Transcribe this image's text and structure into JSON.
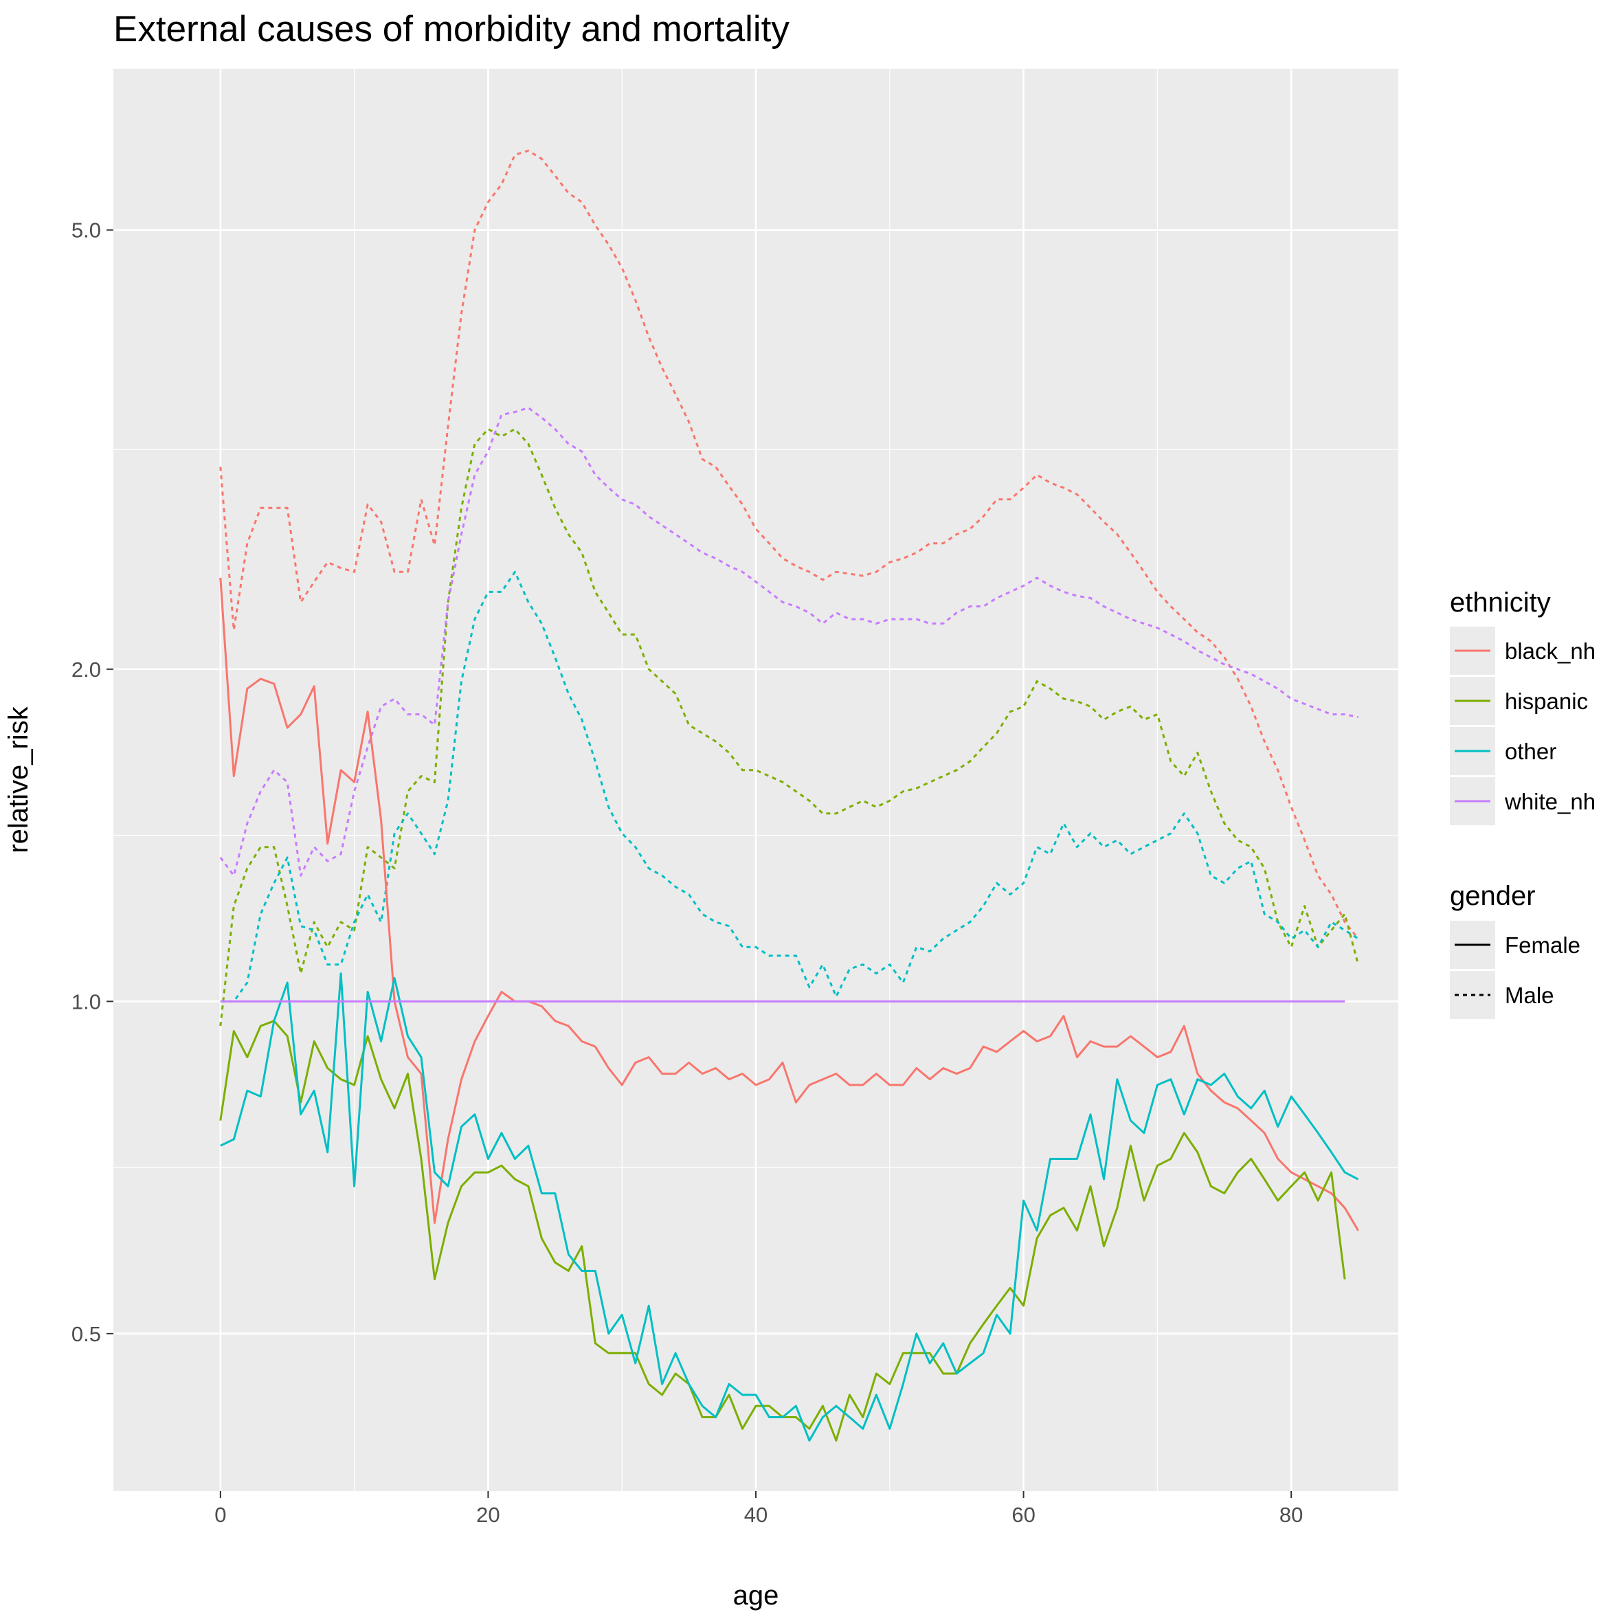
{
  "chart_data": {
    "type": "line",
    "title": "External causes of morbidity and mortality",
    "xlabel": "age",
    "ylabel": "relative_risk",
    "xlim": [
      -8,
      88
    ],
    "ylim": [
      0.36,
      7.0
    ],
    "y_scale": "log",
    "x_ticks": [
      0,
      20,
      40,
      60,
      80
    ],
    "x_tick_labels": [
      "0",
      "20",
      "40",
      "60",
      "80"
    ],
    "y_ticks": [
      0.5,
      1.0,
      2.0,
      5.0
    ],
    "y_tick_labels": [
      "0.5",
      "1.0",
      "2.0",
      "5.0"
    ],
    "grid": true,
    "legend_position": "right",
    "legends": [
      {
        "title": "ethnicity",
        "entries": [
          {
            "label": "black_nh",
            "color": "#F8766D"
          },
          {
            "label": "hispanic",
            "color": "#7CAE00"
          },
          {
            "label": "other",
            "color": "#00BFC4"
          },
          {
            "label": "white_nh",
            "color": "#C77CFF"
          }
        ]
      },
      {
        "title": "gender",
        "entries": [
          {
            "label": "Female",
            "linetype": "solid"
          },
          {
            "label": "Male",
            "linetype": "dashed"
          }
        ]
      }
    ],
    "series": [
      {
        "ethnicity": "black_nh",
        "gender": "Female",
        "color": "#F8766D",
        "x_start": 0,
        "values": [
          2.42,
          1.6,
          1.92,
          1.96,
          1.94,
          1.77,
          1.82,
          1.93,
          1.39,
          1.62,
          1.58,
          1.83,
          1.46,
          1.0,
          0.89,
          0.86,
          0.63,
          0.75,
          0.85,
          0.92,
          0.97,
          1.02,
          1.0,
          1.0,
          0.99,
          0.96,
          0.95,
          0.92,
          0.91,
          0.87,
          0.84,
          0.88,
          0.89,
          0.86,
          0.86,
          0.88,
          0.86,
          0.87,
          0.85,
          0.86,
          0.84,
          0.85,
          0.88,
          0.81,
          0.84,
          0.85,
          0.86,
          0.84,
          0.84,
          0.86,
          0.84,
          0.84,
          0.87,
          0.85,
          0.87,
          0.86,
          0.87,
          0.91,
          0.9,
          0.92,
          0.94,
          0.92,
          0.93,
          0.97,
          0.89,
          0.92,
          0.91,
          0.91,
          0.93,
          0.91,
          0.89,
          0.9,
          0.95,
          0.86,
          0.83,
          0.81,
          0.8,
          0.78,
          0.76,
          0.72,
          0.7,
          0.69,
          0.68,
          0.67,
          0.65,
          0.62
        ]
      },
      {
        "ethnicity": "hispanic",
        "gender": "Female",
        "color": "#7CAE00",
        "x_start": 0,
        "values": [
          0.78,
          0.94,
          0.89,
          0.95,
          0.96,
          0.93,
          0.81,
          0.92,
          0.87,
          0.85,
          0.84,
          0.93,
          0.85,
          0.8,
          0.86,
          0.72,
          0.56,
          0.63,
          0.68,
          0.7,
          0.7,
          0.71,
          0.69,
          0.68,
          0.61,
          0.58,
          0.57,
          0.6,
          0.49,
          0.48,
          0.48,
          0.48,
          0.45,
          0.44,
          0.46,
          0.45,
          0.42,
          0.42,
          0.44,
          0.41,
          0.43,
          0.43,
          0.42,
          0.42,
          0.41,
          0.43,
          0.4,
          0.44,
          0.42,
          0.46,
          0.45,
          0.48,
          0.48,
          0.48,
          0.46,
          0.46,
          0.49,
          0.51,
          0.53,
          0.55,
          0.53,
          0.61,
          0.64,
          0.65,
          0.62,
          0.68,
          0.6,
          0.65,
          0.74,
          0.66,
          0.71,
          0.72,
          0.76,
          0.73,
          0.68,
          0.67,
          0.7,
          0.72,
          0.69,
          0.66,
          0.68,
          0.7,
          0.66,
          0.7,
          0.56
        ]
      },
      {
        "ethnicity": "other",
        "gender": "Female",
        "color": "#00BFC4",
        "x_start": 0,
        "values": [
          0.74,
          0.75,
          0.83,
          0.82,
          0.96,
          1.04,
          0.79,
          0.83,
          0.73,
          1.06,
          0.68,
          1.02,
          0.92,
          1.05,
          0.93,
          0.89,
          0.7,
          0.68,
          0.77,
          0.79,
          0.72,
          0.76,
          0.72,
          0.74,
          0.67,
          0.67,
          0.59,
          0.57,
          0.57,
          0.5,
          0.52,
          0.47,
          0.53,
          0.45,
          0.48,
          0.45,
          0.43,
          0.42,
          0.45,
          0.44,
          0.44,
          0.42,
          0.42,
          0.43,
          0.4,
          0.42,
          0.43,
          0.42,
          0.41,
          0.44,
          0.41,
          0.45,
          0.5,
          0.47,
          0.49,
          0.46,
          0.47,
          0.48,
          0.52,
          0.5,
          0.66,
          0.62,
          0.72,
          0.72,
          0.72,
          0.79,
          0.69,
          0.85,
          0.78,
          0.76,
          0.84,
          0.85,
          0.79,
          0.85,
          0.84,
          0.86,
          0.82,
          0.8,
          0.83,
          0.77,
          0.82,
          0.79,
          0.76,
          0.73,
          0.7,
          0.69
        ]
      },
      {
        "ethnicity": "white_nh",
        "gender": "Female",
        "color": "#C77CFF",
        "x_start": 0,
        "values": [
          1,
          1,
          1,
          1,
          1,
          1,
          1,
          1,
          1,
          1,
          1,
          1,
          1,
          1,
          1,
          1,
          1,
          1,
          1,
          1,
          1,
          1,
          1,
          1,
          1,
          1,
          1,
          1,
          1,
          1,
          1,
          1,
          1,
          1,
          1,
          1,
          1,
          1,
          1,
          1,
          1,
          1,
          1,
          1,
          1,
          1,
          1,
          1,
          1,
          1,
          1,
          1,
          1,
          1,
          1,
          1,
          1,
          1,
          1,
          1,
          1,
          1,
          1,
          1,
          1,
          1,
          1,
          1,
          1,
          1,
          1,
          1,
          1,
          1,
          1,
          1,
          1,
          1,
          1,
          1,
          1,
          1,
          1,
          1,
          1
        ]
      },
      {
        "ethnicity": "black_nh",
        "gender": "Male",
        "color": "#F8766D",
        "x_start": 0,
        "values": [
          3.05,
          2.17,
          2.6,
          2.8,
          2.8,
          2.8,
          2.3,
          2.4,
          2.5,
          2.47,
          2.45,
          2.82,
          2.72,
          2.45,
          2.45,
          2.85,
          2.59,
          3.32,
          4.2,
          5.0,
          5.3,
          5.5,
          5.85,
          5.9,
          5.8,
          5.6,
          5.4,
          5.3,
          5.05,
          4.85,
          4.62,
          4.32,
          4.0,
          3.75,
          3.55,
          3.35,
          3.1,
          3.05,
          2.93,
          2.82,
          2.68,
          2.6,
          2.52,
          2.48,
          2.45,
          2.41,
          2.45,
          2.44,
          2.43,
          2.45,
          2.5,
          2.52,
          2.55,
          2.6,
          2.6,
          2.65,
          2.68,
          2.75,
          2.85,
          2.85,
          2.92,
          3.0,
          2.95,
          2.92,
          2.88,
          2.8,
          2.72,
          2.65,
          2.55,
          2.45,
          2.35,
          2.28,
          2.22,
          2.16,
          2.12,
          2.05,
          1.96,
          1.85,
          1.72,
          1.62,
          1.5,
          1.4,
          1.3,
          1.25,
          1.18,
          1.14
        ]
      },
      {
        "ethnicity": "hispanic",
        "gender": "Male",
        "color": "#7CAE00",
        "x_start": 0,
        "values": [
          0.95,
          1.22,
          1.32,
          1.38,
          1.38,
          1.22,
          1.06,
          1.18,
          1.12,
          1.18,
          1.16,
          1.38,
          1.35,
          1.32,
          1.55,
          1.6,
          1.58,
          2.3,
          2.8,
          3.2,
          3.3,
          3.25,
          3.3,
          3.2,
          3.0,
          2.8,
          2.65,
          2.55,
          2.35,
          2.25,
          2.15,
          2.15,
          2.0,
          1.95,
          1.9,
          1.78,
          1.75,
          1.72,
          1.68,
          1.62,
          1.62,
          1.6,
          1.58,
          1.55,
          1.52,
          1.48,
          1.48,
          1.5,
          1.52,
          1.5,
          1.52,
          1.55,
          1.56,
          1.58,
          1.6,
          1.62,
          1.65,
          1.7,
          1.75,
          1.83,
          1.85,
          1.95,
          1.92,
          1.88,
          1.87,
          1.85,
          1.8,
          1.83,
          1.85,
          1.8,
          1.82,
          1.65,
          1.6,
          1.68,
          1.55,
          1.45,
          1.4,
          1.38,
          1.32,
          1.18,
          1.12,
          1.22,
          1.12,
          1.16,
          1.2,
          1.08
        ]
      },
      {
        "ethnicity": "other",
        "gender": "Male",
        "color": "#00BFC4",
        "x_start": 0,
        "values": [
          1.0,
          1.0,
          1.04,
          1.2,
          1.28,
          1.35,
          1.17,
          1.16,
          1.08,
          1.08,
          1.18,
          1.25,
          1.18,
          1.42,
          1.48,
          1.42,
          1.36,
          1.52,
          1.95,
          2.22,
          2.35,
          2.35,
          2.45,
          2.3,
          2.2,
          2.05,
          1.9,
          1.8,
          1.65,
          1.5,
          1.42,
          1.38,
          1.32,
          1.3,
          1.27,
          1.25,
          1.2,
          1.18,
          1.17,
          1.12,
          1.12,
          1.1,
          1.1,
          1.1,
          1.03,
          1.08,
          1.01,
          1.07,
          1.08,
          1.06,
          1.08,
          1.04,
          1.12,
          1.11,
          1.14,
          1.16,
          1.18,
          1.22,
          1.28,
          1.25,
          1.28,
          1.38,
          1.36,
          1.45,
          1.38,
          1.42,
          1.38,
          1.4,
          1.36,
          1.38,
          1.4,
          1.42,
          1.48,
          1.42,
          1.3,
          1.28,
          1.32,
          1.34,
          1.2,
          1.18,
          1.14,
          1.16,
          1.12,
          1.18,
          1.16,
          1.14
        ]
      },
      {
        "ethnicity": "white_nh",
        "gender": "Male",
        "color": "#C77CFF",
        "x_start": 0,
        "values": [
          1.35,
          1.3,
          1.45,
          1.55,
          1.62,
          1.58,
          1.3,
          1.38,
          1.34,
          1.36,
          1.55,
          1.7,
          1.85,
          1.88,
          1.82,
          1.82,
          1.78,
          2.3,
          2.65,
          3.0,
          3.15,
          3.4,
          3.42,
          3.45,
          3.38,
          3.3,
          3.2,
          3.15,
          3.0,
          2.92,
          2.85,
          2.82,
          2.75,
          2.7,
          2.65,
          2.6,
          2.55,
          2.52,
          2.48,
          2.45,
          2.4,
          2.35,
          2.3,
          2.28,
          2.25,
          2.2,
          2.25,
          2.22,
          2.22,
          2.2,
          2.22,
          2.22,
          2.22,
          2.2,
          2.2,
          2.25,
          2.28,
          2.28,
          2.32,
          2.35,
          2.38,
          2.42,
          2.38,
          2.35,
          2.33,
          2.32,
          2.28,
          2.25,
          2.22,
          2.2,
          2.18,
          2.15,
          2.12,
          2.08,
          2.05,
          2.02,
          2.0,
          1.98,
          1.95,
          1.92,
          1.88,
          1.86,
          1.84,
          1.82,
          1.82,
          1.81
        ]
      }
    ]
  }
}
